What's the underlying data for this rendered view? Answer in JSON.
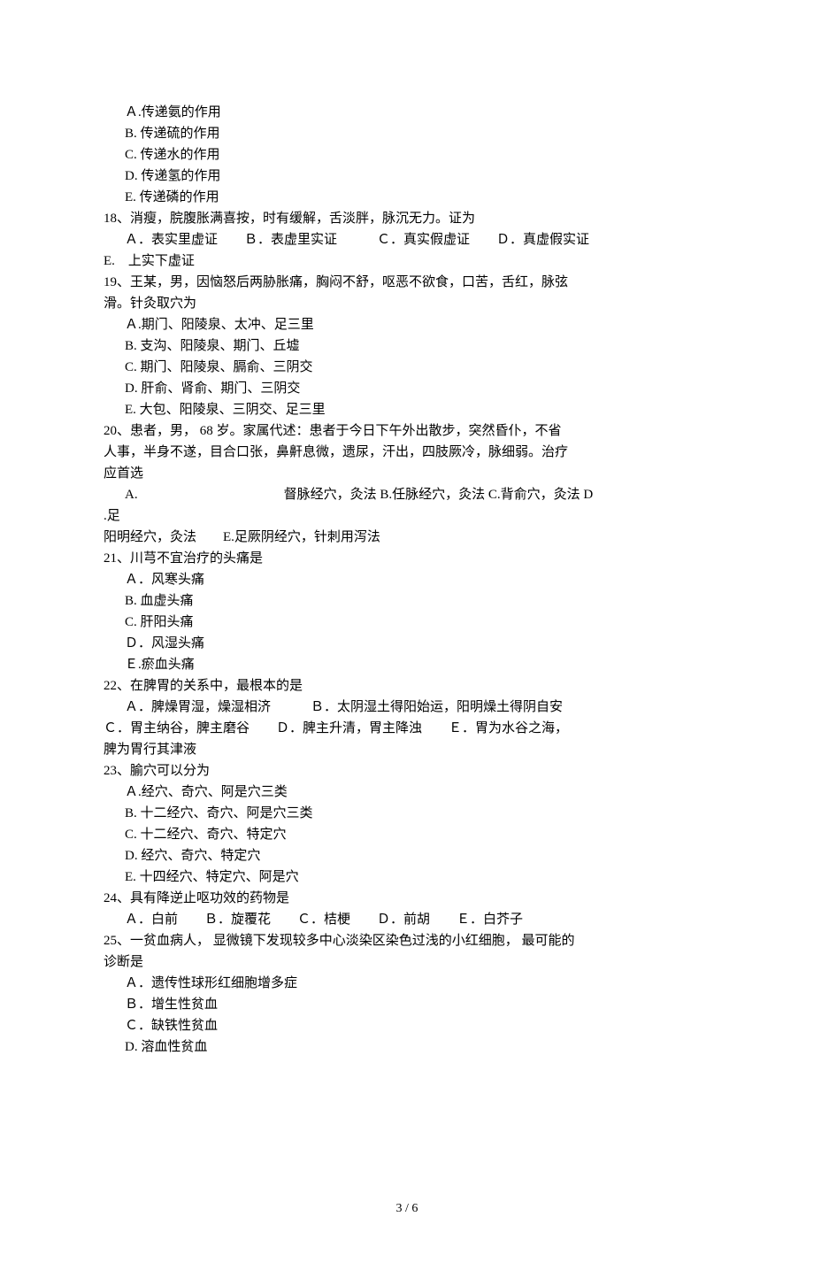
{
  "lines": [
    {
      "cls": "indent-1",
      "text": "Ａ.传递氨的作用"
    },
    {
      "cls": "indent-1",
      "text": "B.  传递硫的作用"
    },
    {
      "cls": "indent-1",
      "text": "C.  传递水的作用"
    },
    {
      "cls": "indent-1",
      "text": "D.  传递氢的作用"
    },
    {
      "cls": "indent-1",
      "text": "E.  传递磷的作用"
    },
    {
      "cls": "",
      "text": "18、消瘦，脘腹胀满喜按，时有缓解，舌淡胖，脉沉无力。证为"
    },
    {
      "cls": "indent-1",
      "text": "Ａ．表实里虚证　　Ｂ．表虚里实证　　　Ｃ．真实假虚证　　Ｄ．真虚假实证"
    },
    {
      "cls": "",
      "text": "E.　上实下虚证"
    },
    {
      "cls": "",
      "text": "19、王某，男，因恼怒后两胁胀痛，胸闷不舒，呕恶不欲食，口苦，舌红，脉弦"
    },
    {
      "cls": "",
      "text": "滑。针灸取穴为"
    },
    {
      "cls": "indent-1",
      "text": "Ａ.期门、阳陵泉、太冲、足三里"
    },
    {
      "cls": "indent-1",
      "text": "B.  支沟、阳陵泉、期门、丘墟"
    },
    {
      "cls": "indent-1",
      "text": "C.  期门、阳陵泉、膈俞、三阴交"
    },
    {
      "cls": "indent-1",
      "text": "D.  肝俞、肾俞、期门、三阴交"
    },
    {
      "cls": "indent-1",
      "text": "E.  大包、阳陵泉、三阴交、足三里"
    },
    {
      "cls": "",
      "text": "20、患者，男，  68 岁。家属代述：患者于今日下午外出散步，突然昏仆，不省"
    },
    {
      "cls": "",
      "text": "人事，半身不遂，目合口张，鼻鼾息微，遗尿，汗出，四肢厥冷，脉细弱。治疗"
    },
    {
      "cls": "",
      "text": "应首选"
    },
    {
      "cls": "indent-1",
      "text": "A.　　　　　　　　　　　督脉经穴，灸法 B.任脉经穴，灸法 C.背俞穴，灸法 D"
    },
    {
      "cls": "",
      "text": ".足"
    },
    {
      "cls": "",
      "text": "阳明经穴，灸法　　E.足厥阴经穴，针刺用泻法"
    },
    {
      "cls": "",
      "text": "21、川芎不宜治疗的头痛是"
    },
    {
      "cls": "indent-1",
      "text": "Ａ．风寒头痛"
    },
    {
      "cls": "indent-1",
      "text": "B.  血虚头痛"
    },
    {
      "cls": "indent-1",
      "text": "C.  肝阳头痛"
    },
    {
      "cls": "indent-1",
      "text": "Ｄ．风湿头痛"
    },
    {
      "cls": "indent-1",
      "text": "Ｅ.瘀血头痛"
    },
    {
      "cls": "",
      "text": "22、在脾胃的关系中，最根本的是"
    },
    {
      "cls": "indent-1",
      "text": "Ａ．脾燥胃湿，燥湿相济　　　Ｂ．太阴湿土得阳始运，阳明燥土得阴自安"
    },
    {
      "cls": "",
      "text": "Ｃ．胃主纳谷，脾主磨谷　　Ｄ．脾主升清，胃主降浊　　Ｅ．胃为水谷之海，"
    },
    {
      "cls": "",
      "text": "脾为胃行其津液"
    },
    {
      "cls": "",
      "text": "23、腧穴可以分为"
    },
    {
      "cls": "indent-1",
      "text": "Ａ.经穴、奇穴、阿是穴三类"
    },
    {
      "cls": "indent-1",
      "text": "B.  十二经穴、奇穴、阿是穴三类"
    },
    {
      "cls": "indent-1",
      "text": "C.  十二经穴、奇穴、特定穴"
    },
    {
      "cls": "indent-1",
      "text": "D.  经穴、奇穴、特定穴"
    },
    {
      "cls": "indent-1",
      "text": "E.  十四经穴、特定穴、阿是穴"
    },
    {
      "cls": "",
      "text": "24、具有降逆止呕功效的药物是"
    },
    {
      "cls": "indent-1",
      "text": "Ａ．白前　　Ｂ．旋覆花　　Ｃ．桔梗　　Ｄ．前胡　　Ｅ．白芥子"
    },
    {
      "cls": "",
      "text": "25、一贫血病人，  显微镜下发现较多中心淡染区染色过浅的小红细胞，  最可能的"
    },
    {
      "cls": "",
      "text": "诊断是"
    },
    {
      "cls": "indent-1",
      "text": "Ａ．遗传性球形红细胞增多症"
    },
    {
      "cls": "indent-1",
      "text": "Ｂ．增生性贫血"
    },
    {
      "cls": "indent-1",
      "text": "Ｃ．缺铁性贫血"
    },
    {
      "cls": "indent-1",
      "text": "D.  溶血性贫血"
    }
  ],
  "pageNumber": "3 / 6"
}
